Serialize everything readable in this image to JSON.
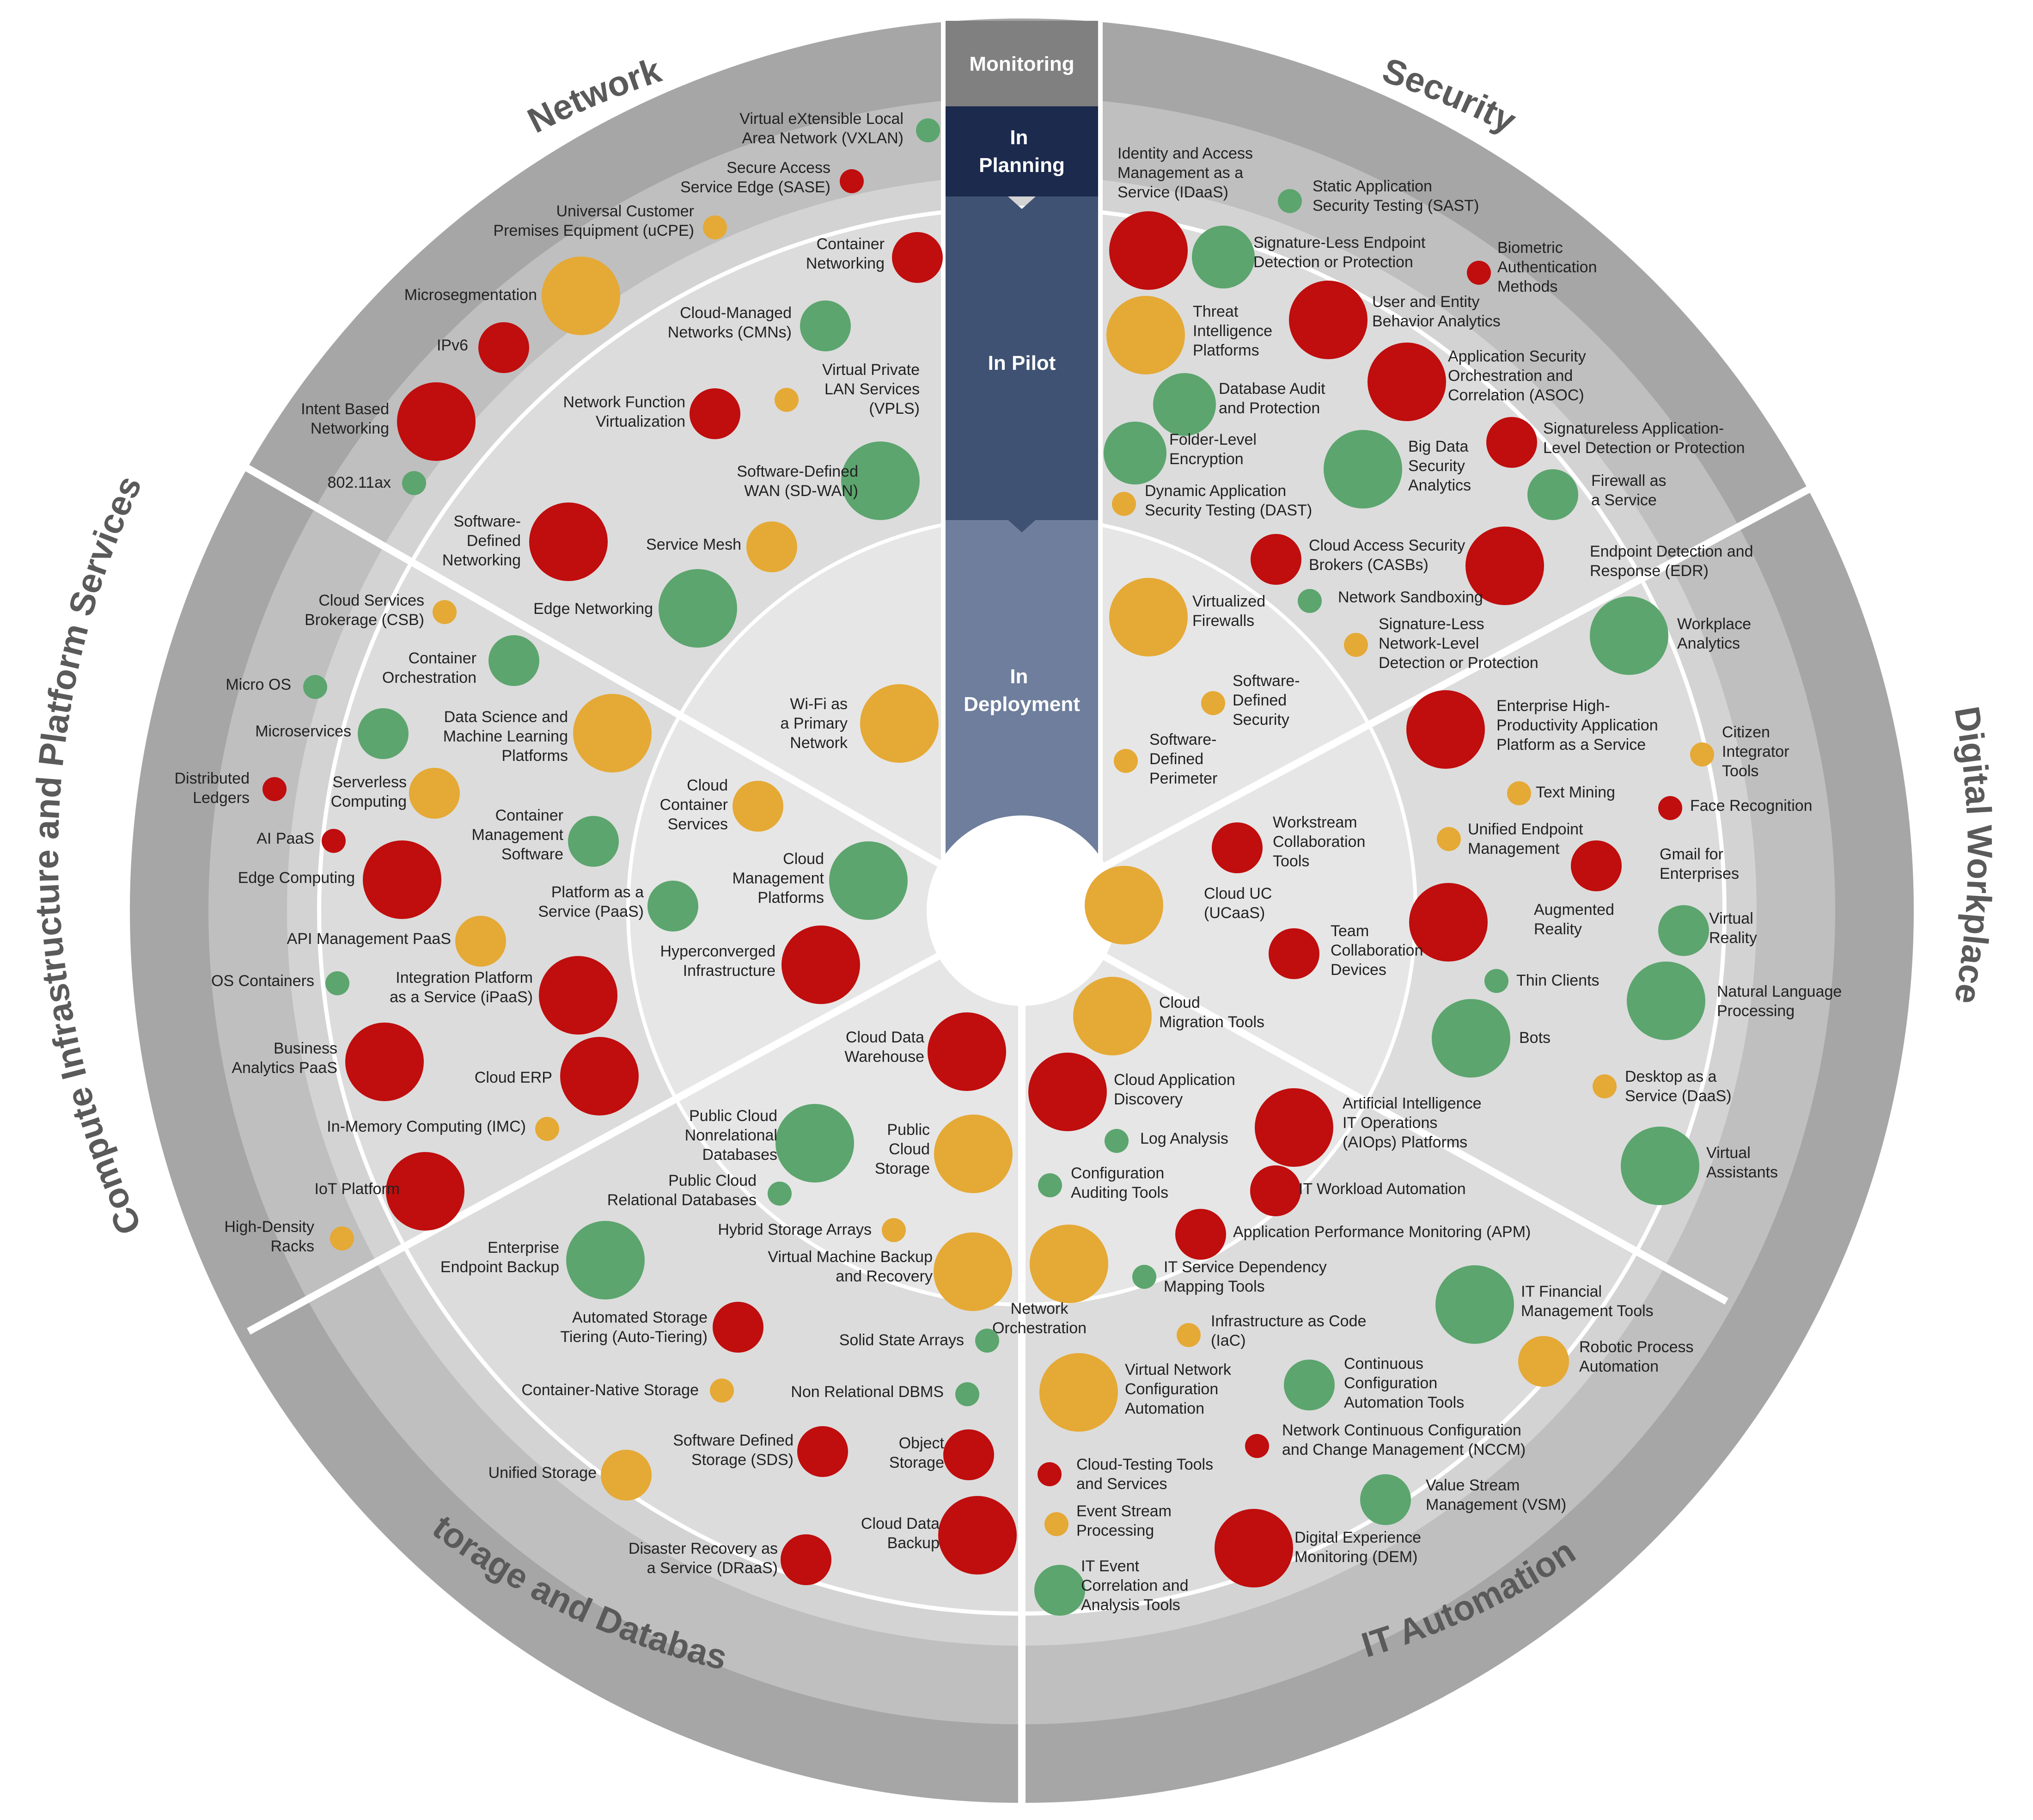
{
  "stages": {
    "monitoring": "Monitoring",
    "planning": [
      "In",
      "Planning"
    ],
    "pilot": "In Pilot",
    "deployment": [
      "In",
      "Deployment"
    ]
  },
  "segments": {
    "network": "Network",
    "security": "Security",
    "digital_workplace": "Digital Workplace",
    "it_automation": "IT Automation",
    "storage_database": "Storage and Database",
    "compute": "Compute Infrastructure and Platform Services"
  },
  "colors": {
    "red": "#c00d0d",
    "green": "#5ca56e",
    "yellow": "#e5a935"
  },
  "bubbles": [
    {
      "lines": [
        "Virtual eXtensible Local",
        "Area Network (VXLAN)"
      ],
      "c": "green",
      "s": 1
    },
    {
      "lines": [
        "Secure Access",
        "Service Edge (SASE)"
      ],
      "c": "red",
      "s": 1
    },
    {
      "lines": [
        "Universal Customer",
        "Premises Equipment (uCPE)"
      ],
      "c": "yellow",
      "s": 1
    },
    {
      "lines": [
        "Microsegmentation"
      ],
      "c": "yellow",
      "s": 4
    },
    {
      "lines": [
        "IPv6"
      ],
      "c": "red",
      "s": 2
    },
    {
      "lines": [
        "Intent Based",
        "Networking"
      ],
      "c": "red",
      "s": 4
    },
    {
      "lines": [
        "802.11ax"
      ],
      "c": "green",
      "s": 1
    },
    {
      "lines": [
        "Container",
        "Networking"
      ],
      "c": "red",
      "s": 2
    },
    {
      "lines": [
        "Cloud-Managed",
        "Networks (CMNs)"
      ],
      "c": "green",
      "s": 2
    },
    {
      "lines": [
        "Virtual Private",
        "LAN Services",
        "(VPLS)"
      ],
      "c": "yellow",
      "s": 1
    },
    {
      "lines": [
        "Network Function",
        "Virtualization"
      ],
      "c": "red",
      "s": 2
    },
    {
      "lines": [
        "Software-Defined",
        "WAN (SD-WAN)"
      ],
      "c": "green",
      "s": 4
    },
    {
      "lines": [
        "Software-",
        "Defined",
        "Networking"
      ],
      "c": "red",
      "s": 4
    },
    {
      "lines": [
        "Service Mesh"
      ],
      "c": "yellow",
      "s": 2
    },
    {
      "lines": [
        "Edge Networking"
      ],
      "c": "green",
      "s": 4
    },
    {
      "lines": [
        "Wi-Fi as",
        "a Primary",
        "Network"
      ],
      "c": "yellow",
      "s": 4
    },
    {
      "lines": [
        "Identity and Access",
        "Management as a",
        "Service (IDaaS)"
      ],
      "c": "red",
      "s": 4
    },
    {
      "lines": [
        "Static Application",
        "Security Testing (SAST)"
      ],
      "c": "green",
      "s": 1
    },
    {
      "lines": [
        "Signature-Less Endpoint",
        "Detection or Protection"
      ],
      "c": "green",
      "s": 3
    },
    {
      "lines": [
        "Biometric",
        "Authentication",
        "Methods"
      ],
      "c": "red",
      "s": 1
    },
    {
      "lines": [
        "Threat",
        "Intelligence",
        "Platforms"
      ],
      "c": "yellow",
      "s": 4
    },
    {
      "lines": [
        "User and Entity",
        "Behavior Analytics"
      ],
      "c": "red",
      "s": 4
    },
    {
      "lines": [
        "Application Security",
        "Orchestration and",
        "Correlation (ASOC)"
      ],
      "c": "red",
      "s": 4
    },
    {
      "lines": [
        "Database Audit",
        "and Protection"
      ],
      "c": "green",
      "s": 3
    },
    {
      "lines": [
        "Signatureless Application-",
        "Level Detection or Protection"
      ],
      "c": "red",
      "s": 2
    },
    {
      "lines": [
        "Folder-Level",
        "Encryption"
      ],
      "c": "green",
      "s": 3
    },
    {
      "lines": [
        "Big Data",
        "Security",
        "Analytics"
      ],
      "c": "green",
      "s": 4
    },
    {
      "lines": [
        "Firewall as",
        "a Service"
      ],
      "c": "green",
      "s": 2
    },
    {
      "lines": [
        "Dynamic Application",
        "Security Testing (DAST)"
      ],
      "c": "yellow",
      "s": 1
    },
    {
      "lines": [
        "Cloud Access Security",
        "Brokers (CASBs)"
      ],
      "c": "red",
      "s": 2
    },
    {
      "lines": [
        "Endpoint Detection and",
        "Response (EDR)"
      ],
      "c": "red",
      "s": 4
    },
    {
      "lines": [
        "Network Sandboxing"
      ],
      "c": "green",
      "s": 1
    },
    {
      "lines": [
        "Virtualized",
        "Firewalls"
      ],
      "c": "yellow",
      "s": 4
    },
    {
      "lines": [
        "Signature-Less",
        "Network-Level",
        "Detection or Protection"
      ],
      "c": "yellow",
      "s": 1
    },
    {
      "lines": [
        "Software-",
        "Defined",
        "Security"
      ],
      "c": "yellow",
      "s": 1
    },
    {
      "lines": [
        "Software-",
        "Defined",
        "Perimeter"
      ],
      "c": "yellow",
      "s": 1
    },
    {
      "lines": [
        "Workplace",
        "Analytics"
      ],
      "c": "green",
      "s": 4
    },
    {
      "lines": [
        "Enterprise High-",
        "Productivity Application",
        "Platform as a Service"
      ],
      "c": "red",
      "s": 4
    },
    {
      "lines": [
        "Citizen",
        "Integrator",
        "Tools"
      ],
      "c": "yellow",
      "s": 1
    },
    {
      "lines": [
        "Text Mining"
      ],
      "c": "yellow",
      "s": 1
    },
    {
      "lines": [
        "Face Recognition"
      ],
      "c": "red",
      "s": 1
    },
    {
      "lines": [
        "Unified Endpoint",
        "Management"
      ],
      "c": "yellow",
      "s": 1
    },
    {
      "lines": [
        "Gmail for",
        "Enterprises"
      ],
      "c": "red",
      "s": 2
    },
    {
      "lines": [
        "Workstream",
        "Collaboration",
        "Tools"
      ],
      "c": "red",
      "s": 2
    },
    {
      "lines": [
        "Cloud UC",
        "(UCaaS)"
      ],
      "c": "yellow",
      "s": 4
    },
    {
      "lines": [
        "Augmented",
        "Reality"
      ],
      "c": "red",
      "s": 4
    },
    {
      "lines": [
        "Virtual",
        "Reality"
      ],
      "c": "green",
      "s": 2
    },
    {
      "lines": [
        "Team",
        "Collaboration",
        "Devices"
      ],
      "c": "red",
      "s": 2
    },
    {
      "lines": [
        "Thin Clients"
      ],
      "c": "green",
      "s": 1
    },
    {
      "lines": [
        "Natural Language",
        "Processing"
      ],
      "c": "green",
      "s": 4
    },
    {
      "lines": [
        "Bots"
      ],
      "c": "green",
      "s": 4
    },
    {
      "lines": [
        "Desktop as a",
        "Service (DaaS)"
      ],
      "c": "yellow",
      "s": 1
    },
    {
      "lines": [
        "Virtual",
        "Assistants"
      ],
      "c": "green",
      "s": 4
    },
    {
      "lines": [
        "Cloud",
        "Migration Tools"
      ],
      "c": "yellow",
      "s": 4
    },
    {
      "lines": [
        "Cloud Application",
        "Discovery"
      ],
      "c": "red",
      "s": 4
    },
    {
      "lines": [
        "Artificial Intelligence",
        "IT Operations",
        "(AIOps) Platforms"
      ],
      "c": "red",
      "s": 4
    },
    {
      "lines": [
        "Log Analysis"
      ],
      "c": "green",
      "s": 1
    },
    {
      "lines": [
        "Configuration",
        "Auditing Tools"
      ],
      "c": "green",
      "s": 1
    },
    {
      "lines": [
        "IT Workload Automation"
      ],
      "c": "red",
      "s": 2
    },
    {
      "lines": [
        "Application Performance Monitoring (APM)"
      ],
      "c": "red",
      "s": 2
    },
    {
      "lines": [
        "IT Service Dependency",
        "Mapping Tools"
      ],
      "c": "green",
      "s": 1
    },
    {
      "lines": [
        "Network",
        "Orchestration"
      ],
      "c": "yellow",
      "s": 4
    },
    {
      "lines": [
        "IT Financial",
        "Management Tools"
      ],
      "c": "green",
      "s": 4
    },
    {
      "lines": [
        "Infrastructure as Code",
        "(IaC)"
      ],
      "c": "yellow",
      "s": 1
    },
    {
      "lines": [
        "Robotic Process",
        "Automation"
      ],
      "c": "yellow",
      "s": 2
    },
    {
      "lines": [
        "Virtual Network",
        "Configuration",
        "Automation"
      ],
      "c": "yellow",
      "s": 4
    },
    {
      "lines": [
        "Continuous",
        "Configuration",
        "Automation Tools"
      ],
      "c": "green",
      "s": 2
    },
    {
      "lines": [
        "Network Continuous Configuration",
        "and Change Management (NCCM)"
      ],
      "c": "red",
      "s": 1
    },
    {
      "lines": [
        "Cloud-Testing Tools",
        "and Services"
      ],
      "c": "red",
      "s": 1
    },
    {
      "lines": [
        "Value Stream",
        "Management (VSM)"
      ],
      "c": "green",
      "s": 2
    },
    {
      "lines": [
        "Event Stream",
        "Processing"
      ],
      "c": "yellow",
      "s": 1
    },
    {
      "lines": [
        "Digital Experience",
        "Monitoring (DEM)"
      ],
      "c": "red",
      "s": 4
    },
    {
      "lines": [
        "IT Event",
        "Correlation and",
        "Analysis Tools"
      ],
      "c": "green",
      "s": 2
    },
    {
      "lines": [
        "Cloud Data",
        "Warehouse"
      ],
      "c": "red",
      "s": 4
    },
    {
      "lines": [
        "Public Cloud",
        "Nonrelational",
        "Databases"
      ],
      "c": "green",
      "s": 4
    },
    {
      "lines": [
        "Public",
        "Cloud",
        "Storage"
      ],
      "c": "yellow",
      "s": 4
    },
    {
      "lines": [
        "Public Cloud",
        "Relational Databases"
      ],
      "c": "green",
      "s": 1
    },
    {
      "lines": [
        "Hybrid Storage Arrays"
      ],
      "c": "yellow",
      "s": 1
    },
    {
      "lines": [
        "Enterprise",
        "Endpoint Backup"
      ],
      "c": "green",
      "s": 4
    },
    {
      "lines": [
        "Virtual Machine Backup",
        "and Recovery"
      ],
      "c": "yellow",
      "s": 4
    },
    {
      "lines": [
        "Automated Storage",
        "Tiering (Auto-Tiering)"
      ],
      "c": "red",
      "s": 2
    },
    {
      "lines": [
        "Solid State Arrays"
      ],
      "c": "green",
      "s": 1
    },
    {
      "lines": [
        "Container-Native Storage"
      ],
      "c": "yellow",
      "s": 1
    },
    {
      "lines": [
        "Non Relational DBMS"
      ],
      "c": "green",
      "s": 1
    },
    {
      "lines": [
        "Software Defined",
        "Storage (SDS)"
      ],
      "c": "red",
      "s": 2
    },
    {
      "lines": [
        "Object",
        "Storage"
      ],
      "c": "red",
      "s": 2
    },
    {
      "lines": [
        "Unified Storage"
      ],
      "c": "yellow",
      "s": 2
    },
    {
      "lines": [
        "Cloud Data",
        "Backup"
      ],
      "c": "red",
      "s": 4
    },
    {
      "lines": [
        "Disaster Recovery as",
        "a Service (DRaaS)"
      ],
      "c": "red",
      "s": 2
    },
    {
      "lines": [
        "Cloud Services",
        "Brokerage (CSB)"
      ],
      "c": "yellow",
      "s": 1
    },
    {
      "lines": [
        "Container",
        "Orchestration"
      ],
      "c": "green",
      "s": 2
    },
    {
      "lines": [
        "Micro OS"
      ],
      "c": "green",
      "s": 1
    },
    {
      "lines": [
        "Microservices"
      ],
      "c": "green",
      "s": 2
    },
    {
      "lines": [
        "Data Science and",
        "Machine Learning",
        "Platforms"
      ],
      "c": "yellow",
      "s": 4
    },
    {
      "lines": [
        "Distributed",
        "Ledgers"
      ],
      "c": "red",
      "s": 1
    },
    {
      "lines": [
        "Serverless",
        "Computing"
      ],
      "c": "yellow",
      "s": 2
    },
    {
      "lines": [
        "Container",
        "Management",
        "Software"
      ],
      "c": "green",
      "s": 2
    },
    {
      "lines": [
        "AI PaaS"
      ],
      "c": "red",
      "s": 1
    },
    {
      "lines": [
        "Edge Computing"
      ],
      "c": "red",
      "s": 4
    },
    {
      "lines": [
        "Platform as a",
        "Service (PaaS)"
      ],
      "c": "green",
      "s": 2
    },
    {
      "lines": [
        "API Management PaaS"
      ],
      "c": "yellow",
      "s": 2
    },
    {
      "lines": [
        "OS Containers"
      ],
      "c": "green",
      "s": 1
    },
    {
      "lines": [
        "Integration Platform",
        "as a Service (iPaaS)"
      ],
      "c": "red",
      "s": 4
    },
    {
      "lines": [
        "Business",
        "Analytics PaaS"
      ],
      "c": "red",
      "s": 4
    },
    {
      "lines": [
        "Cloud ERP"
      ],
      "c": "red",
      "s": 4
    },
    {
      "lines": [
        "In-Memory Computing (IMC)"
      ],
      "c": "yellow",
      "s": 1
    },
    {
      "lines": [
        "IoT Platform"
      ],
      "c": "red",
      "s": 4
    },
    {
      "lines": [
        "High-Density",
        "Racks"
      ],
      "c": "yellow",
      "s": 1
    },
    {
      "lines": [
        "Cloud",
        "Container",
        "Services"
      ],
      "c": "yellow",
      "s": 2
    },
    {
      "lines": [
        "Cloud",
        "Management",
        "Platforms"
      ],
      "c": "green",
      "s": 4
    },
    {
      "lines": [
        "Hyperconverged",
        "Infrastructure"
      ],
      "c": "red",
      "s": 4
    }
  ]
}
